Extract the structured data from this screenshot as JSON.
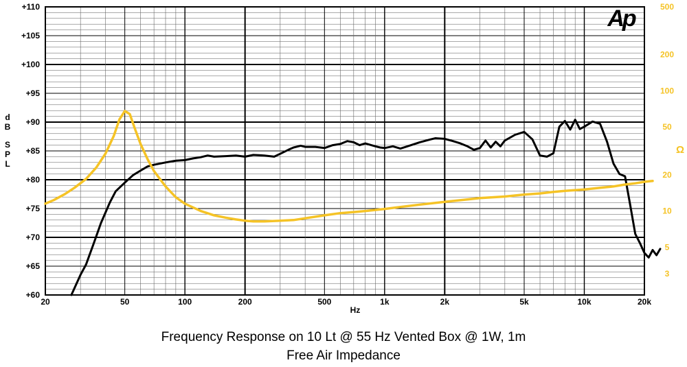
{
  "chart_data": {
    "type": "line",
    "title": "Frequency Response on 10 Lt @ 55 Hz Vented Box @ 1W, 1m",
    "subtitle": "Free Air Impedance",
    "xlabel": "Hz",
    "ylabel": "dB SPL",
    "y2label": "Ω",
    "logo": "Ap",
    "x_scale": "log",
    "y2_scale": "log",
    "xlim": [
      20,
      20000
    ],
    "ylim": [
      60,
      110
    ],
    "y2lim": [
      2,
      500
    ],
    "grid": true,
    "x_ticks": [
      {
        "value": 20,
        "label": "20"
      },
      {
        "value": 50,
        "label": "50"
      },
      {
        "value": 100,
        "label": "100"
      },
      {
        "value": 200,
        "label": "200"
      },
      {
        "value": 500,
        "label": "500"
      },
      {
        "value": 1000,
        "label": "1k"
      },
      {
        "value": 2000,
        "label": "2k"
      },
      {
        "value": 5000,
        "label": "5k"
      },
      {
        "value": 10000,
        "label": "10k"
      },
      {
        "value": 20000,
        "label": "20k"
      }
    ],
    "y_ticks": [
      {
        "value": 60,
        "label": "+60"
      },
      {
        "value": 65,
        "label": "+65"
      },
      {
        "value": 70,
        "label": "+70"
      },
      {
        "value": 75,
        "label": "+75"
      },
      {
        "value": 80,
        "label": "+80"
      },
      {
        "value": 85,
        "label": "+85"
      },
      {
        "value": 90,
        "label": "+90"
      },
      {
        "value": 95,
        "label": "+95"
      },
      {
        "value": 100,
        "label": "+100"
      },
      {
        "value": 105,
        "label": "+105"
      },
      {
        "value": 110,
        "label": "+110"
      }
    ],
    "y2_ticks": [
      {
        "value": 3,
        "label": "3"
      },
      {
        "value": 5,
        "label": "5"
      },
      {
        "value": 10,
        "label": "10"
      },
      {
        "value": 20,
        "label": "20"
      },
      {
        "value": 50,
        "label": "50"
      },
      {
        "value": 100,
        "label": "100"
      },
      {
        "value": 200,
        "label": "200"
      },
      {
        "value": 500,
        "label": "500"
      }
    ],
    "series": [
      {
        "axis": "left",
        "color": "#000000",
        "points": [
          [
            27,
            60
          ],
          [
            30,
            63.5
          ],
          [
            32,
            65.3
          ],
          [
            35,
            69
          ],
          [
            38,
            72.5
          ],
          [
            42,
            76
          ],
          [
            45,
            78
          ],
          [
            50,
            79.5
          ],
          [
            55,
            80.8
          ],
          [
            60,
            81.6
          ],
          [
            65,
            82.3
          ],
          [
            70,
            82.6
          ],
          [
            80,
            83
          ],
          [
            90,
            83.3
          ],
          [
            100,
            83.4
          ],
          [
            110,
            83.7
          ],
          [
            120,
            83.9
          ],
          [
            130,
            84.2
          ],
          [
            140,
            84
          ],
          [
            160,
            84.1
          ],
          [
            180,
            84.2
          ],
          [
            200,
            84
          ],
          [
            220,
            84.3
          ],
          [
            250,
            84.2
          ],
          [
            280,
            84
          ],
          [
            300,
            84.5
          ],
          [
            330,
            85.2
          ],
          [
            350,
            85.6
          ],
          [
            380,
            85.9
          ],
          [
            400,
            85.7
          ],
          [
            450,
            85.7
          ],
          [
            500,
            85.5
          ],
          [
            550,
            86
          ],
          [
            600,
            86.2
          ],
          [
            650,
            86.7
          ],
          [
            700,
            86.5
          ],
          [
            750,
            86
          ],
          [
            800,
            86.3
          ],
          [
            900,
            85.8
          ],
          [
            950,
            85.6
          ],
          [
            1000,
            85.5
          ],
          [
            1100,
            85.8
          ],
          [
            1200,
            85.4
          ],
          [
            1300,
            85.8
          ],
          [
            1500,
            86.5
          ],
          [
            1700,
            87
          ],
          [
            1800,
            87.2
          ],
          [
            2000,
            87.1
          ],
          [
            2200,
            86.7
          ],
          [
            2400,
            86.3
          ],
          [
            2600,
            85.8
          ],
          [
            2800,
            85.2
          ],
          [
            3000,
            85.5
          ],
          [
            3200,
            86.8
          ],
          [
            3400,
            85.6
          ],
          [
            3600,
            86.6
          ],
          [
            3800,
            85.8
          ],
          [
            4000,
            86.8
          ],
          [
            4500,
            87.8
          ],
          [
            5000,
            88.3
          ],
          [
            5500,
            87
          ],
          [
            6000,
            84.2
          ],
          [
            6500,
            84
          ],
          [
            7000,
            84.6
          ],
          [
            7500,
            89.2
          ],
          [
            8000,
            90.2
          ],
          [
            8500,
            88.7
          ],
          [
            9000,
            90.4
          ],
          [
            9500,
            88.8
          ],
          [
            10000,
            89.2
          ],
          [
            11000,
            90.1
          ],
          [
            12000,
            89.7
          ],
          [
            13000,
            86.6
          ],
          [
            14000,
            82.8
          ],
          [
            15000,
            81
          ],
          [
            16000,
            80.6
          ],
          [
            17000,
            75.5
          ],
          [
            18000,
            70.6
          ],
          [
            19000,
            69
          ],
          [
            20000,
            67.3
          ],
          [
            21000,
            66.5
          ],
          [
            22000,
            67.8
          ],
          [
            23000,
            66.9
          ],
          [
            24000,
            68
          ]
        ]
      },
      {
        "axis": "right",
        "color": "#F5C326",
        "points": [
          [
            20,
            11.5
          ],
          [
            22,
            12.3
          ],
          [
            25,
            13.8
          ],
          [
            28,
            15.6
          ],
          [
            32,
            18.5
          ],
          [
            36,
            23
          ],
          [
            40,
            30
          ],
          [
            44,
            42
          ],
          [
            47,
            58
          ],
          [
            50,
            68
          ],
          [
            53,
            64
          ],
          [
            56,
            49
          ],
          [
            60,
            36
          ],
          [
            65,
            27
          ],
          [
            70,
            21.5
          ],
          [
            80,
            16
          ],
          [
            90,
            13
          ],
          [
            100,
            11.5
          ],
          [
            120,
            10
          ],
          [
            140,
            9.2
          ],
          [
            160,
            8.8
          ],
          [
            180,
            8.5
          ],
          [
            200,
            8.3
          ],
          [
            220,
            8.2
          ],
          [
            250,
            8.2
          ],
          [
            300,
            8.3
          ],
          [
            350,
            8.4
          ],
          [
            400,
            8.7
          ],
          [
            500,
            9.2
          ],
          [
            600,
            9.6
          ],
          [
            700,
            9.8
          ],
          [
            800,
            10
          ],
          [
            1000,
            10.4
          ],
          [
            1200,
            10.8
          ],
          [
            1500,
            11.3
          ],
          [
            2000,
            11.9
          ],
          [
            2500,
            12.4
          ],
          [
            3000,
            12.8
          ],
          [
            4000,
            13.2
          ],
          [
            5000,
            13.7
          ],
          [
            6000,
            14
          ],
          [
            7000,
            14.4
          ],
          [
            8000,
            14.7
          ],
          [
            10000,
            15.1
          ],
          [
            12000,
            15.6
          ],
          [
            14000,
            16
          ],
          [
            16000,
            16.6
          ],
          [
            18000,
            17
          ],
          [
            20000,
            17.5
          ],
          [
            22000,
            17.8
          ]
        ]
      }
    ]
  }
}
